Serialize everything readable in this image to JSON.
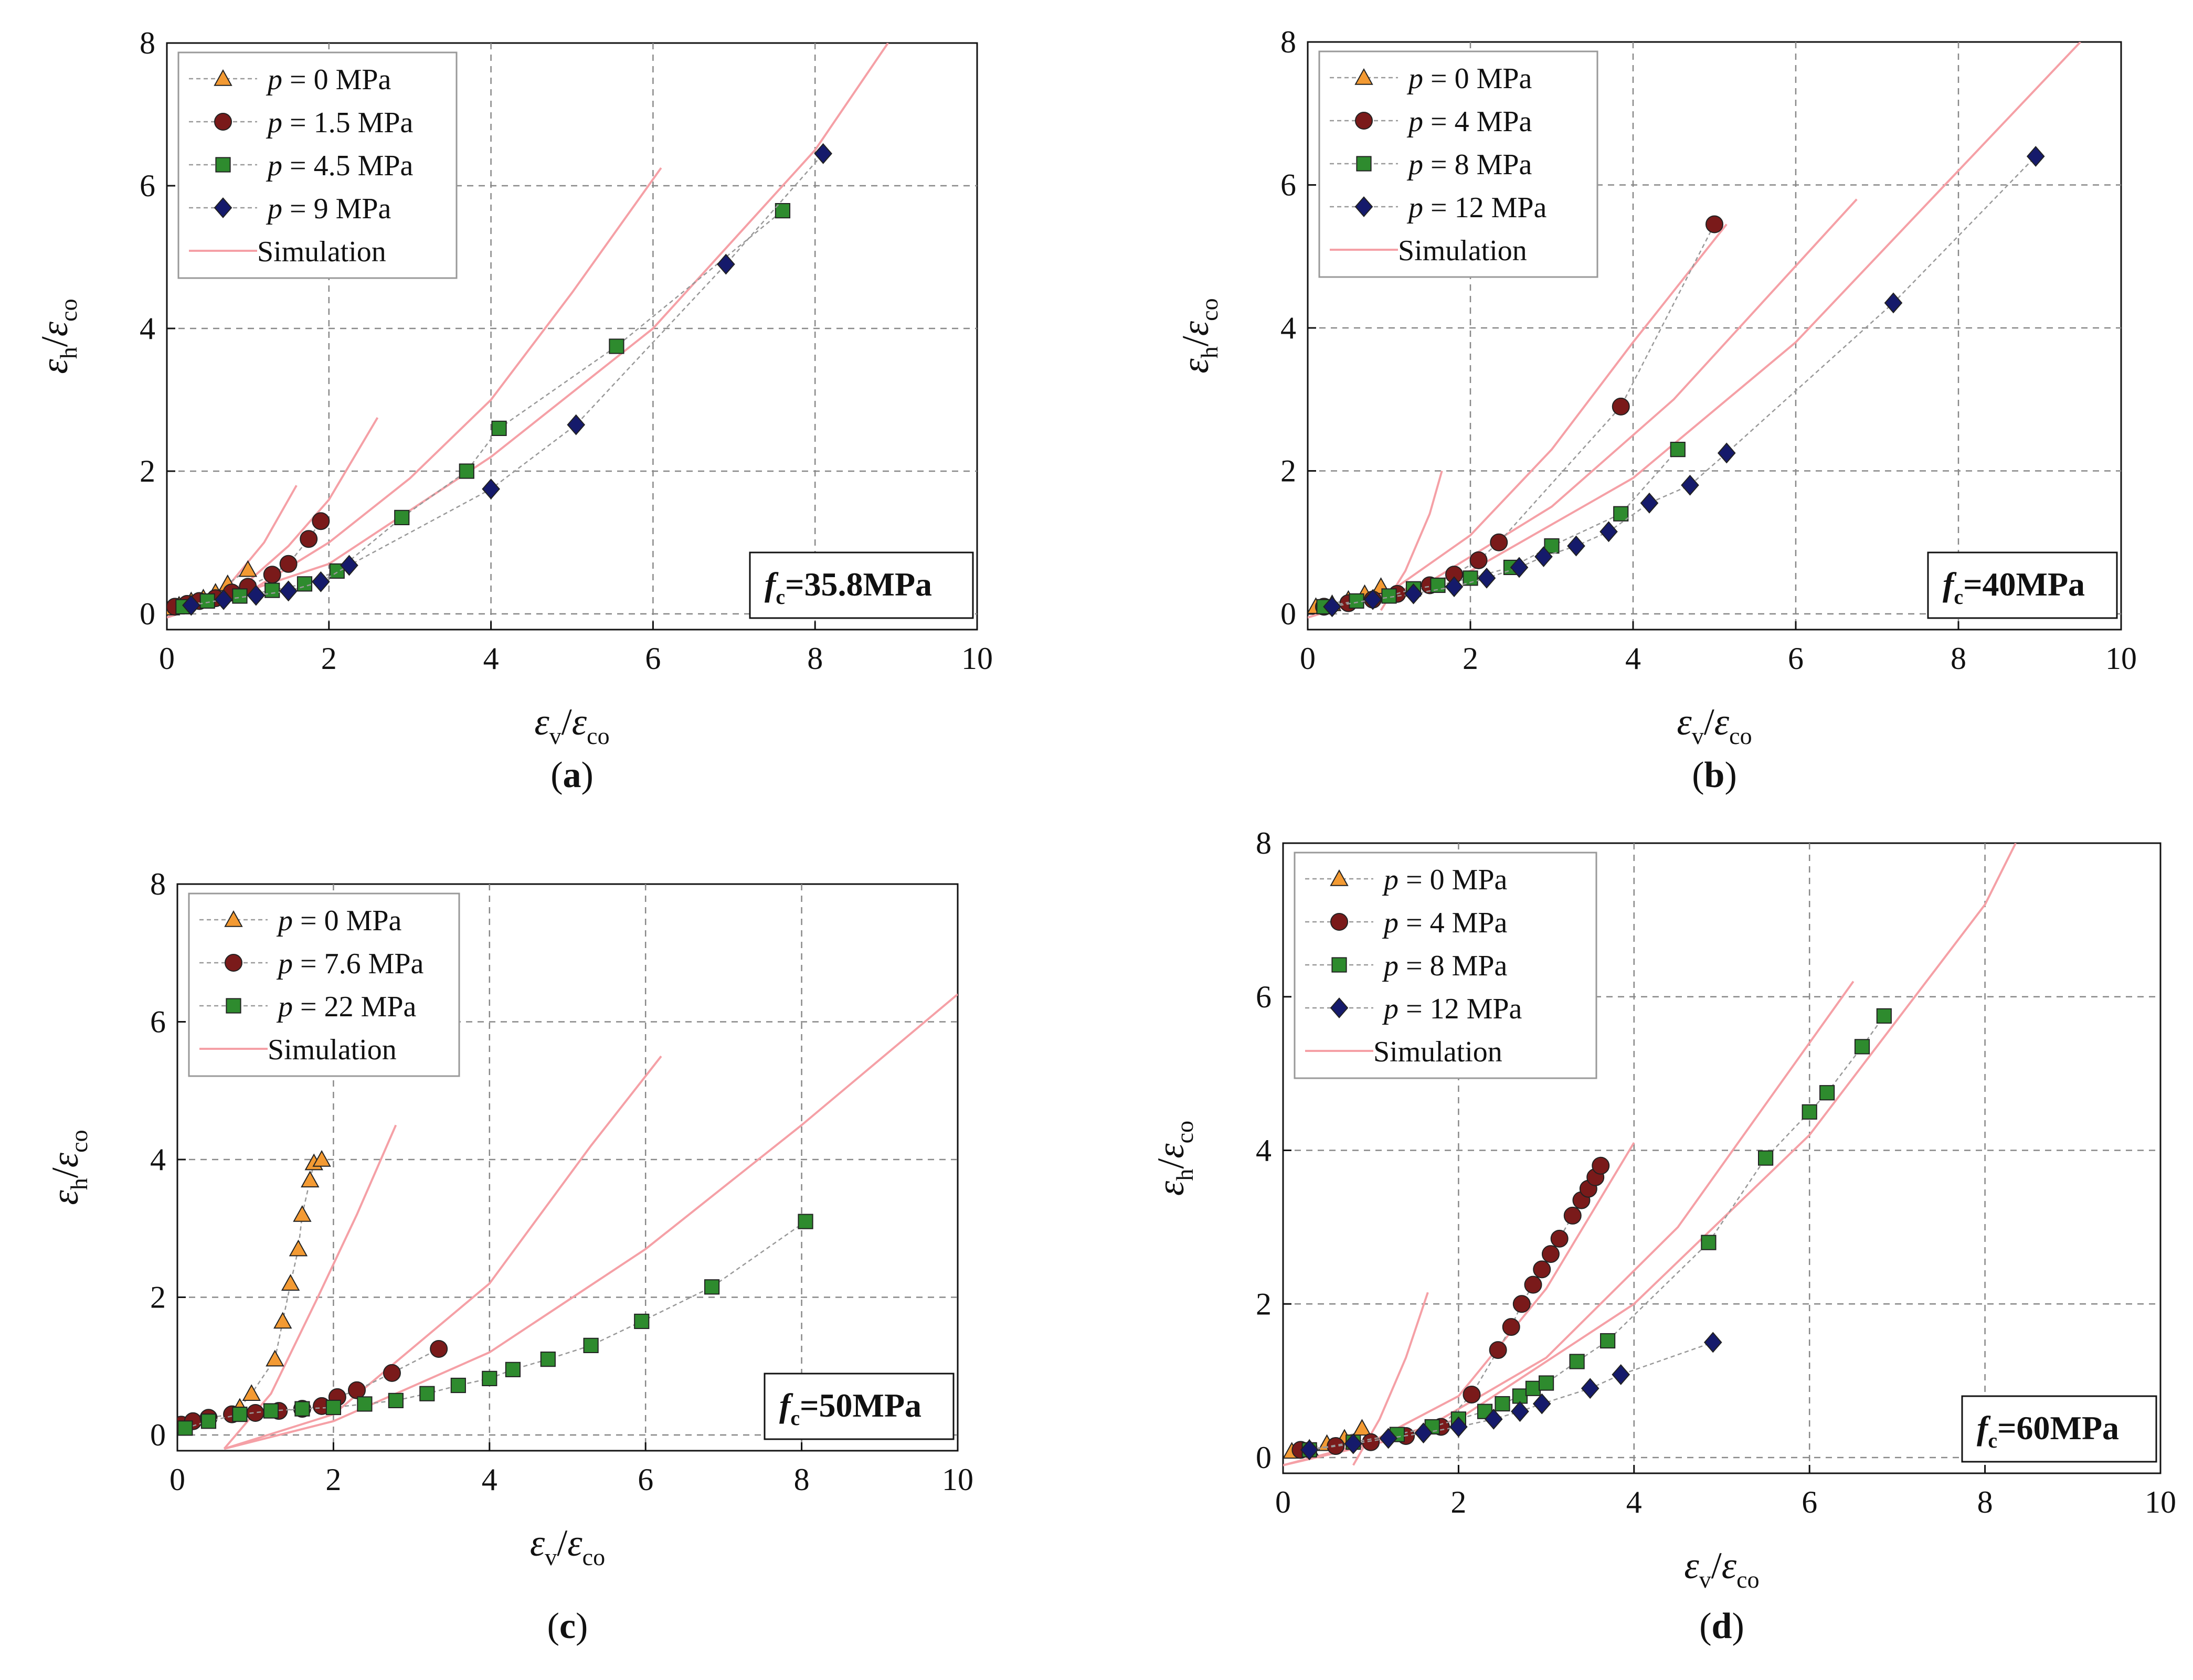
{
  "chart_data": [
    {
      "type": "scatter",
      "panel_label": "a",
      "annotation": "35.8MPa",
      "xlabel": "εv/εco",
      "ylabel": "εh/εco",
      "xlim": [
        0,
        10
      ],
      "ylim": [
        0,
        8
      ],
      "xticks": [
        "0",
        "2",
        "4",
        "6",
        "8",
        "10"
      ],
      "yticks": [
        "0",
        "2",
        "4",
        "6",
        "8"
      ],
      "legend": [
        "p = 0 MPa",
        "p = 1.5 MPa",
        "p = 4.5 MPa",
        "p = 9 MPa",
        "Simulation"
      ],
      "series": [
        {
          "name": "p = 0 MPa",
          "marker": "triangle",
          "color": "#F39A33",
          "x": [
            0.05,
            0.15,
            0.3,
            0.45,
            0.6,
            0.75,
            1.0
          ],
          "y": [
            0.08,
            0.12,
            0.18,
            0.22,
            0.3,
            0.42,
            0.62
          ]
        },
        {
          "name": "p = 1.5 MPa",
          "marker": "circle",
          "color": "#7A1A1A",
          "x": [
            0.1,
            0.25,
            0.4,
            0.6,
            0.8,
            1.0,
            1.3,
            1.5,
            1.75,
            1.9
          ],
          "y": [
            0.1,
            0.14,
            0.18,
            0.22,
            0.3,
            0.38,
            0.55,
            0.7,
            1.05,
            1.3
          ]
        },
        {
          "name": "p = 4.5 MPa",
          "marker": "square",
          "color": "#2E8B2E",
          "x": [
            0.2,
            0.5,
            0.9,
            1.3,
            1.7,
            2.1,
            2.9,
            3.7,
            4.1,
            5.55,
            7.6
          ],
          "y": [
            0.1,
            0.18,
            0.25,
            0.33,
            0.42,
            0.6,
            1.35,
            2.0,
            2.6,
            3.75,
            5.65
          ]
        },
        {
          "name": "p = 9 MPa",
          "marker": "diamond",
          "color": "#151A6B",
          "x": [
            0.3,
            0.7,
            1.1,
            1.5,
            1.9,
            2.25,
            4.0,
            5.05,
            6.9,
            8.1
          ],
          "y": [
            0.12,
            0.2,
            0.26,
            0.32,
            0.45,
            0.68,
            1.75,
            2.65,
            4.9,
            6.45
          ]
        }
      ],
      "simulation": [
        {
          "x": [
            0,
            0.4,
            0.8,
            1.2,
            1.6
          ],
          "y": [
            -0.05,
            0.12,
            0.45,
            1.0,
            1.8
          ]
        },
        {
          "x": [
            0,
            0.5,
            1.0,
            1.5,
            2.0,
            2.6
          ],
          "y": [
            -0.05,
            0.15,
            0.45,
            0.95,
            1.6,
            2.75
          ]
        },
        {
          "x": [
            0,
            1,
            2,
            3,
            4,
            5,
            6.1
          ],
          "y": [
            -0.05,
            0.3,
            1.0,
            1.9,
            3.0,
            4.5,
            6.25
          ]
        },
        {
          "x": [
            0,
            2,
            4,
            6,
            8,
            8.9
          ],
          "y": [
            -0.05,
            0.7,
            2.2,
            4.0,
            6.5,
            8.0
          ]
        }
      ]
    },
    {
      "type": "scatter",
      "panel_label": "b",
      "annotation": "40MPa",
      "xlabel": "εv/εco",
      "ylabel": "εh/εco",
      "xlim": [
        0,
        10
      ],
      "ylim": [
        0,
        8
      ],
      "xticks": [
        "0",
        "2",
        "4",
        "6",
        "8",
        "10"
      ],
      "yticks": [
        "0",
        "2",
        "4",
        "6",
        "8"
      ],
      "legend": [
        "p = 0 MPa",
        "p = 4 MPa",
        "p = 8 MPa",
        "p = 12 MPa",
        "Simulation"
      ],
      "series": [
        {
          "name": "p = 0 MPa",
          "marker": "triangle",
          "color": "#F39A33",
          "x": [
            0.1,
            0.3,
            0.5,
            0.7,
            0.9
          ],
          "y": [
            0.1,
            0.14,
            0.2,
            0.28,
            0.38
          ]
        },
        {
          "name": "p = 4 MPa",
          "marker": "circle",
          "color": "#7A1A1A",
          "x": [
            0.2,
            0.5,
            0.8,
            1.1,
            1.5,
            1.8,
            2.1,
            2.35,
            3.85,
            5.0
          ],
          "y": [
            0.1,
            0.15,
            0.2,
            0.28,
            0.4,
            0.55,
            0.75,
            1.0,
            2.9,
            5.45
          ]
        },
        {
          "name": "p = 8 MPa",
          "marker": "square",
          "color": "#2E8B2E",
          "x": [
            0.2,
            0.6,
            1.0,
            1.3,
            1.6,
            2.0,
            2.5,
            3.0,
            3.85,
            4.55
          ],
          "y": [
            0.1,
            0.18,
            0.25,
            0.35,
            0.4,
            0.5,
            0.65,
            0.95,
            1.4,
            2.3
          ]
        },
        {
          "name": "p = 12 MPa",
          "marker": "diamond",
          "color": "#151A6B",
          "x": [
            0.3,
            0.8,
            1.3,
            1.8,
            2.2,
            2.6,
            2.9,
            3.3,
            3.7,
            4.2,
            4.7,
            5.15,
            7.2,
            8.95
          ],
          "y": [
            0.1,
            0.2,
            0.28,
            0.38,
            0.5,
            0.65,
            0.8,
            0.95,
            1.15,
            1.55,
            1.8,
            2.25,
            4.35,
            6.4
          ]
        }
      ],
      "simulation": [
        {
          "x": [
            0.9,
            1.2,
            1.5,
            1.65
          ],
          "y": [
            0.05,
            0.6,
            1.4,
            2.0
          ]
        },
        {
          "x": [
            0,
            1,
            2,
            3,
            4,
            5.15
          ],
          "y": [
            -0.05,
            0.3,
            1.1,
            2.3,
            3.8,
            5.45
          ]
        },
        {
          "x": [
            0,
            1.5,
            3,
            4.5,
            6.75
          ],
          "y": [
            -0.05,
            0.45,
            1.5,
            3.0,
            5.8
          ]
        },
        {
          "x": [
            0,
            2,
            4,
            6,
            8,
            9.5
          ],
          "y": [
            -0.05,
            0.6,
            1.9,
            3.8,
            6.2,
            8.0
          ]
        }
      ]
    },
    {
      "type": "scatter",
      "panel_label": "c",
      "annotation": "50MPa",
      "xlabel": "εv/εco",
      "ylabel": "εh/εco",
      "xlim": [
        0,
        10
      ],
      "ylim": [
        0,
        8
      ],
      "xticks": [
        "0",
        "2",
        "4",
        "6",
        "8",
        "10"
      ],
      "yticks": [
        "0",
        "2",
        "4",
        "6",
        "8"
      ],
      "legend": [
        "p = 0 MPa",
        "p = 7.6 MPa",
        "p = 22 MPa",
        "Simulation"
      ],
      "series": [
        {
          "name": "p = 0 MPa",
          "marker": "triangle",
          "color": "#F39A33",
          "x": [
            0.8,
            0.95,
            1.25,
            1.35,
            1.45,
            1.55,
            1.6,
            1.7,
            1.75,
            1.85
          ],
          "y": [
            0.4,
            0.6,
            1.1,
            1.65,
            2.2,
            2.7,
            3.2,
            3.7,
            3.95,
            4.0
          ]
        },
        {
          "name": "p = 7.6 MPa",
          "marker": "circle",
          "color": "#7A1A1A",
          "x": [
            0.05,
            0.2,
            0.4,
            0.7,
            1.0,
            1.3,
            1.6,
            1.85,
            2.05,
            2.3,
            2.75,
            3.35
          ],
          "y": [
            0.15,
            0.2,
            0.25,
            0.3,
            0.32,
            0.35,
            0.38,
            0.42,
            0.55,
            0.65,
            0.9,
            1.25
          ]
        },
        {
          "name": "p = 22 MPa",
          "marker": "square",
          "color": "#2E8B2E",
          "x": [
            0.1,
            0.4,
            0.8,
            1.2,
            1.6,
            2.0,
            2.4,
            2.8,
            3.2,
            3.6,
            4.0,
            4.3,
            4.75,
            5.3,
            5.95,
            6.85,
            8.05
          ],
          "y": [
            0.1,
            0.2,
            0.3,
            0.35,
            0.38,
            0.4,
            0.45,
            0.5,
            0.6,
            0.72,
            0.82,
            0.95,
            1.1,
            1.3,
            1.65,
            2.15,
            3.1
          ]
        }
      ],
      "simulation": [
        {
          "x": [
            0.6,
            1.2,
            1.8,
            2.3,
            2.8
          ],
          "y": [
            -0.2,
            0.6,
            2.0,
            3.2,
            4.5
          ]
        },
        {
          "x": [
            0.6,
            2,
            4,
            5.3,
            6.2
          ],
          "y": [
            -0.2,
            0.3,
            2.2,
            4.2,
            5.5
          ]
        },
        {
          "x": [
            0.6,
            2,
            4,
            6,
            8,
            10
          ],
          "y": [
            -0.2,
            0.2,
            1.2,
            2.7,
            4.5,
            6.4
          ]
        }
      ]
    },
    {
      "type": "scatter",
      "panel_label": "d",
      "annotation": "60MPa",
      "xlabel": "εv/εco",
      "ylabel": "εh/εco",
      "xlim": [
        0,
        10
      ],
      "ylim": [
        0,
        8
      ],
      "xticks": [
        "0",
        "2",
        "4",
        "6",
        "8",
        "10"
      ],
      "yticks": [
        "0",
        "2",
        "4",
        "6",
        "8"
      ],
      "legend": [
        "p = 0 MPa",
        "p = 4 MPa",
        "p = 8 MPa",
        "p = 12 MPa",
        "Simulation"
      ],
      "series": [
        {
          "name": "p = 0 MPa",
          "marker": "triangle",
          "color": "#F39A33",
          "x": [
            0.1,
            0.3,
            0.5,
            0.7,
            0.9
          ],
          "y": [
            0.08,
            0.12,
            0.18,
            0.25,
            0.38
          ]
        },
        {
          "name": "p = 4 MPa",
          "marker": "circle",
          "color": "#7A1A1A",
          "x": [
            0.2,
            0.6,
            1.0,
            1.4,
            1.8,
            2.15,
            2.45,
            2.6,
            2.72,
            2.85,
            2.95,
            3.05,
            3.15,
            3.3,
            3.4,
            3.48,
            3.56,
            3.62
          ],
          "y": [
            0.1,
            0.15,
            0.2,
            0.28,
            0.4,
            0.82,
            1.4,
            1.7,
            2.0,
            2.25,
            2.45,
            2.65,
            2.85,
            3.15,
            3.35,
            3.5,
            3.65,
            3.8
          ]
        },
        {
          "name": "p = 8 MPa",
          "marker": "square",
          "color": "#2E8B2E",
          "x": [
            0.3,
            0.8,
            1.3,
            1.7,
            2.0,
            2.3,
            2.5,
            2.7,
            2.85,
            3.0,
            3.35,
            3.7,
            4.85,
            5.5,
            6.0,
            6.2,
            6.6,
            6.85
          ],
          "y": [
            0.1,
            0.2,
            0.3,
            0.4,
            0.5,
            0.6,
            0.7,
            0.8,
            0.9,
            0.97,
            1.25,
            1.52,
            2.8,
            3.9,
            4.5,
            4.75,
            5.35,
            5.75
          ]
        },
        {
          "name": "p = 12 MPa",
          "marker": "diamond",
          "color": "#151A6B",
          "x": [
            0.3,
            0.8,
            1.2,
            1.6,
            2.0,
            2.4,
            2.7,
            2.95,
            3.5,
            3.85,
            4.9
          ],
          "y": [
            0.1,
            0.18,
            0.25,
            0.32,
            0.4,
            0.5,
            0.6,
            0.7,
            0.9,
            1.08,
            1.5
          ]
        }
      ],
      "simulation": [
        {
          "x": [
            0.8,
            1.1,
            1.4,
            1.65
          ],
          "y": [
            -0.1,
            0.5,
            1.3,
            2.15
          ]
        },
        {
          "x": [
            0,
            1,
            2,
            3,
            4.0
          ],
          "y": [
            -0.1,
            0.2,
            0.8,
            2.2,
            4.1
          ]
        },
        {
          "x": [
            0,
            1.5,
            3,
            4.5,
            6.5
          ],
          "y": [
            -0.1,
            0.3,
            1.3,
            3.0,
            6.2
          ]
        },
        {
          "x": [
            0,
            2,
            4,
            6,
            8,
            8.35
          ],
          "y": [
            -0.1,
            0.5,
            2.0,
            4.2,
            7.2,
            8.0
          ]
        }
      ]
    }
  ]
}
